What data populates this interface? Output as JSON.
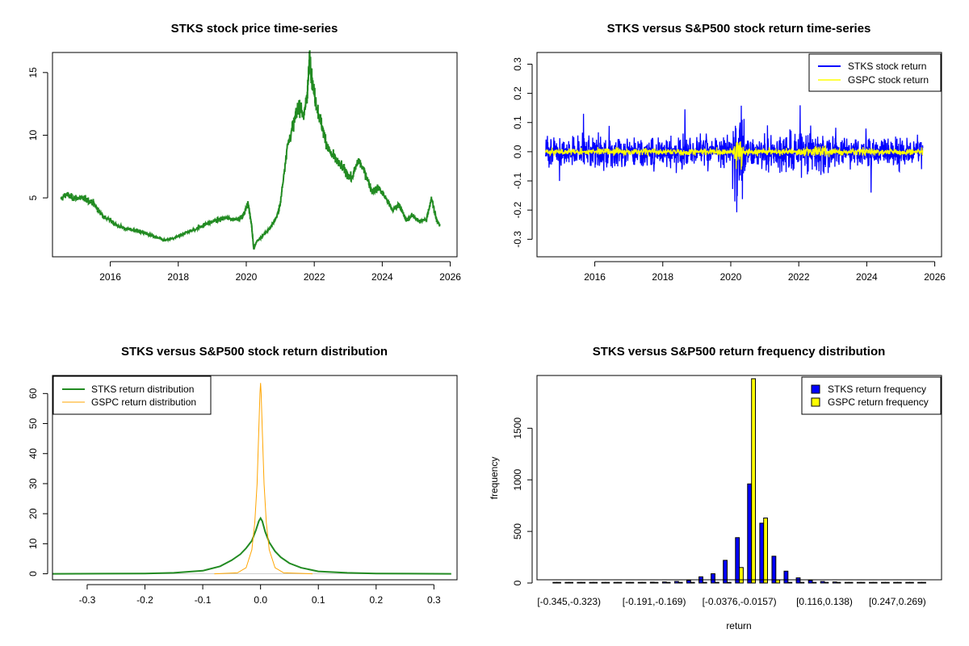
{
  "chart_data": [
    {
      "type": "line",
      "title": "STKS stock price time-series",
      "xlabel": "",
      "ylabel": "",
      "xlim": [
        2014.3,
        2026.2
      ],
      "ylim": [
        0.3,
        16.6
      ],
      "x_ticks": [
        2016,
        2018,
        2020,
        2022,
        2024,
        2026
      ],
      "y_ticks": [
        5,
        10,
        15
      ],
      "series": [
        {
          "color": "#228B22",
          "x": [
            2014.55,
            2014.7,
            2014.9,
            2015.1,
            2015.3,
            2015.5,
            2015.65,
            2015.8,
            2016.0,
            2016.2,
            2016.5,
            2016.8,
            2017.0,
            2017.3,
            2017.6,
            2017.9,
            2018.2,
            2018.5,
            2018.8,
            2019.1,
            2019.4,
            2019.7,
            2019.9,
            2020.05,
            2020.15,
            2020.22,
            2020.3,
            2020.5,
            2020.7,
            2020.9,
            2021.0,
            2021.2,
            2021.4,
            2021.55,
            2021.7,
            2021.8,
            2021.87,
            2021.95,
            2022.1,
            2022.25,
            2022.4,
            2022.5,
            2022.7,
            2022.9,
            2023.1,
            2023.3,
            2023.5,
            2023.7,
            2023.9,
            2024.1,
            2024.3,
            2024.5,
            2024.7,
            2024.9,
            2025.1,
            2025.3,
            2025.45,
            2025.6,
            2025.7
          ],
          "y": [
            4.9,
            5.3,
            5.0,
            5.0,
            4.9,
            4.6,
            4.0,
            3.5,
            3.2,
            2.8,
            2.5,
            2.4,
            2.2,
            1.9,
            1.6,
            1.8,
            2.2,
            2.5,
            2.9,
            3.2,
            3.4,
            3.3,
            3.5,
            4.6,
            3.0,
            0.9,
            1.5,
            2.0,
            2.6,
            3.5,
            4.5,
            9.0,
            11.0,
            12.5,
            11.5,
            13.5,
            16.2,
            14.0,
            12.0,
            10.5,
            9.0,
            8.5,
            7.8,
            7.2,
            6.5,
            8.0,
            7.0,
            5.5,
            5.8,
            5.0,
            4.0,
            4.5,
            3.2,
            3.6,
            3.1,
            3.3,
            5.0,
            3.2,
            2.8
          ]
        }
      ]
    },
    {
      "type": "line",
      "title": "STKS versus S&P500 stock return time-series",
      "xlabel": "",
      "ylabel": "",
      "xlim": [
        2014.3,
        2026.2
      ],
      "ylim": [
        -0.36,
        0.34
      ],
      "x_ticks": [
        2016,
        2018,
        2020,
        2022,
        2024,
        2026
      ],
      "y_ticks": [
        -0.3,
        -0.2,
        -0.1,
        0.0,
        0.1,
        0.2,
        0.3
      ],
      "legend": "top-right",
      "series": [
        {
          "name": "STKS stock return",
          "color": "#0000FF"
        },
        {
          "name": "GSPC stock return",
          "color": "#FFFF00"
        }
      ]
    },
    {
      "type": "line",
      "title": "STKS versus S&P500 stock return distribution",
      "xlabel": "",
      "ylabel": "",
      "xlim": [
        -0.36,
        0.34
      ],
      "ylim": [
        -2,
        66
      ],
      "x_ticks": [
        -0.3,
        -0.2,
        -0.1,
        0.0,
        0.1,
        0.2,
        0.3
      ],
      "y_ticks": [
        0,
        10,
        20,
        30,
        40,
        50,
        60
      ],
      "legend": "top-left",
      "series": [
        {
          "name": "STKS return distribution",
          "color": "#228B22",
          "x": [
            -0.36,
            -0.2,
            -0.15,
            -0.1,
            -0.07,
            -0.05,
            -0.035,
            -0.025,
            -0.015,
            -0.008,
            -0.003,
            0.0,
            0.003,
            0.008,
            0.015,
            0.025,
            0.035,
            0.05,
            0.07,
            0.1,
            0.15,
            0.2,
            0.33
          ],
          "y": [
            0,
            0.1,
            0.3,
            1.0,
            2.5,
            4.5,
            6.5,
            8.5,
            11.0,
            14.5,
            17.5,
            18.5,
            17.5,
            14.0,
            10.5,
            7.5,
            5.5,
            3.5,
            2.0,
            0.8,
            0.3,
            0.1,
            0
          ]
        },
        {
          "name": "GSPC return distribution",
          "color": "#FFA500",
          "x": [
            -0.08,
            -0.04,
            -0.025,
            -0.015,
            -0.01,
            -0.006,
            -0.003,
            -0.001,
            0.0,
            0.001,
            0.003,
            0.006,
            0.01,
            0.015,
            0.025,
            0.04,
            0.09
          ],
          "y": [
            0,
            0.3,
            2,
            8,
            17,
            30,
            48,
            60,
            63.5,
            60,
            48,
            30,
            17,
            8,
            2,
            0.3,
            0
          ]
        }
      ]
    },
    {
      "type": "bar",
      "title": "STKS versus S&P500 return frequency distribution",
      "xlabel": "return",
      "ylabel": "frequency",
      "ylim": [
        0,
        1980
      ],
      "y_ticks": [
        0,
        500,
        1000,
        1500
      ],
      "x_tick_labels": [
        "[-0.345,-0.323)",
        "[-0.191,-0.169)",
        "[-0.0376,-0.0157)",
        "[0.116,0.138)",
        "[0.247,0.269)"
      ],
      "x_tick_bins": [
        1,
        8,
        15,
        22,
        28
      ],
      "legend": "top-right",
      "bins_count": 31,
      "series": [
        {
          "name": "STKS return frequency",
          "color": "#0000FF",
          "values": [
            2,
            3,
            3,
            2,
            3,
            4,
            5,
            6,
            8,
            10,
            15,
            25,
            60,
            90,
            220,
            440,
            960,
            580,
            260,
            115,
            50,
            25,
            15,
            10,
            6,
            5,
            3,
            3,
            2,
            1,
            1
          ]
        },
        {
          "name": "GSPC return frequency",
          "color": "#FFFF00",
          "values": [
            0,
            0,
            0,
            0,
            0,
            0,
            0,
            0,
            0,
            0,
            0,
            0,
            0,
            0,
            0,
            150,
            1980,
            630,
            30,
            5,
            0,
            0,
            0,
            0,
            0,
            0,
            0,
            0,
            0,
            0,
            0
          ]
        }
      ]
    }
  ]
}
